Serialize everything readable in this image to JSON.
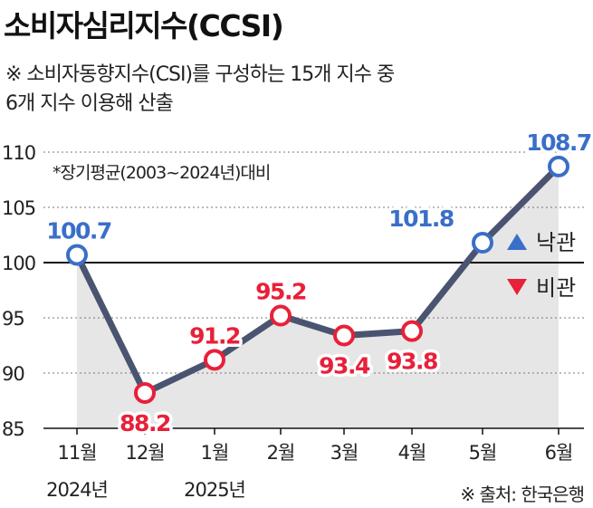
{
  "title": "소비자심리지수(CCSI)",
  "subtitle_line1": "※ 소비자동향지수(CSI)를 구성하는 15개 지수 중",
  "subtitle_line2": "6개 지수 이용해 산출",
  "note": "*장기평균(2003~2024년)대비",
  "source": "※ 출처: 한국은행",
  "legend": {
    "up_label": "낙관",
    "down_label": "비관",
    "up_color": "#3a6fc8",
    "down_color": "#e8203a"
  },
  "colors": {
    "line": "#4a5470",
    "area": "#e6e6e6",
    "pos": "#3a6fc8",
    "neg": "#e8203a"
  },
  "chart_data": {
    "type": "line",
    "categories": [
      "11월",
      "12월",
      "1월",
      "2월",
      "3월",
      "4월",
      "5월",
      "6월"
    ],
    "year_labels": [
      "2024년",
      "",
      "2025년",
      "",
      "",
      "",
      "",
      ""
    ],
    "values": [
      100.7,
      88.2,
      91.2,
      95.2,
      93.4,
      93.8,
      101.8,
      108.7
    ],
    "value_labels": [
      "100.7",
      "88.2",
      "91.2",
      "95.2",
      "93.4",
      "93.8",
      "101.8",
      "108.7"
    ],
    "yticks": [
      "110",
      "105",
      "100",
      "95",
      "90",
      "85"
    ],
    "ylim": [
      85,
      110
    ],
    "baseline": 100,
    "grid": "dashed-horizontal"
  }
}
